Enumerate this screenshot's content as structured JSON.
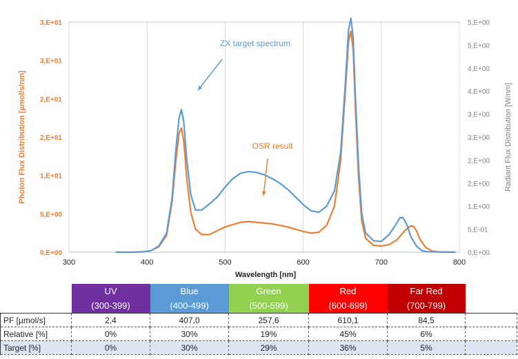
{
  "colors": {
    "left_axis": "#ed7d31",
    "right_axis": "#808080",
    "osr_line": "#ed7d31",
    "zx_line": "#5b9bd5",
    "target_row_bg": "#dde5f3"
  },
  "chart_data": {
    "type": "line",
    "xlabel": "Wavelength [nm]",
    "ylabel": "Photon Flux Distribution [µmol/s/nm]",
    "y2label": "Radiant Flux Distribution [W/nm]",
    "xlim": [
      300,
      800
    ],
    "ylim": [
      0,
      30
    ],
    "y2lim": [
      0,
      5
    ],
    "grid": "vertical",
    "x_ticks": [
      "300",
      "400",
      "500",
      "600",
      "700",
      "800"
    ],
    "y_ticks": [
      "0,E+00",
      "5,E+00",
      "1,E+01",
      "2,E+01",
      "2,E+01",
      "3,E+01",
      "3,E+01"
    ],
    "y2_ticks": [
      "0,E+00",
      "5,E-01",
      "1,E+00",
      "2,E+00",
      "2,E+00",
      "3,E+00",
      "3,E+00",
      "4,E+00",
      "4,E+00",
      "5,E+00",
      "5,E+00"
    ],
    "annotations": [
      {
        "text": "ZX target spectrum",
        "series": "ZX target spectrum"
      },
      {
        "text": "OSR result",
        "series": "OSR result"
      }
    ],
    "series": [
      {
        "name": "ZX target spectrum",
        "axis": "left",
        "points": [
          [
            360,
            0
          ],
          [
            380,
            0
          ],
          [
            395,
            0.05
          ],
          [
            405,
            0.2
          ],
          [
            415,
            0.8
          ],
          [
            425,
            2.5
          ],
          [
            432,
            7
          ],
          [
            437,
            13.5
          ],
          [
            441,
            17.5
          ],
          [
            444,
            18.6
          ],
          [
            447,
            17
          ],
          [
            451,
            12
          ],
          [
            456,
            7.5
          ],
          [
            462,
            5.5
          ],
          [
            470,
            5.5
          ],
          [
            480,
            6.3
          ],
          [
            490,
            7.2
          ],
          [
            500,
            8.5
          ],
          [
            510,
            9.6
          ],
          [
            520,
            10.3
          ],
          [
            530,
            10.5
          ],
          [
            540,
            10.4
          ],
          [
            550,
            10.1
          ],
          [
            560,
            9.6
          ],
          [
            570,
            9
          ],
          [
            580,
            8.2
          ],
          [
            590,
            7.2
          ],
          [
            600,
            6.2
          ],
          [
            610,
            5.4
          ],
          [
            620,
            5.2
          ],
          [
            630,
            6
          ],
          [
            640,
            8
          ],
          [
            648,
            13
          ],
          [
            654,
            22
          ],
          [
            658,
            29
          ],
          [
            661,
            30.5
          ],
          [
            664,
            28
          ],
          [
            667,
            20
          ],
          [
            671,
            11
          ],
          [
            675,
            5
          ],
          [
            680,
            2.5
          ],
          [
            690,
            1.5
          ],
          [
            700,
            1.4
          ],
          [
            710,
            2.3
          ],
          [
            718,
            3.5
          ],
          [
            724,
            4.5
          ],
          [
            728,
            4.5
          ],
          [
            733,
            3.5
          ],
          [
            738,
            2
          ],
          [
            745,
            0.8
          ],
          [
            752,
            0.2
          ],
          [
            760,
            0.05
          ],
          [
            795,
            0
          ]
        ]
      },
      {
        "name": "OSR result",
        "axis": "left",
        "points": [
          [
            360,
            0
          ],
          [
            380,
            0
          ],
          [
            395,
            0.05
          ],
          [
            405,
            0.2
          ],
          [
            415,
            0.7
          ],
          [
            425,
            2.2
          ],
          [
            432,
            6.5
          ],
          [
            437,
            12
          ],
          [
            441,
            15.5
          ],
          [
            444,
            16.2
          ],
          [
            447,
            14.5
          ],
          [
            451,
            9.5
          ],
          [
            456,
            5.2
          ],
          [
            462,
            3
          ],
          [
            470,
            2.3
          ],
          [
            480,
            2.3
          ],
          [
            490,
            2.8
          ],
          [
            500,
            3.3
          ],
          [
            510,
            3.6
          ],
          [
            520,
            3.9
          ],
          [
            530,
            4
          ],
          [
            540,
            3.9
          ],
          [
            550,
            3.8
          ],
          [
            560,
            3.7
          ],
          [
            570,
            3.5
          ],
          [
            580,
            3.3
          ],
          [
            590,
            3
          ],
          [
            600,
            2.7
          ],
          [
            610,
            2.5
          ],
          [
            620,
            2.6
          ],
          [
            630,
            3.5
          ],
          [
            640,
            6
          ],
          [
            648,
            12
          ],
          [
            654,
            21
          ],
          [
            658,
            27.5
          ],
          [
            661,
            28.8
          ],
          [
            664,
            26.5
          ],
          [
            667,
            18.5
          ],
          [
            671,
            9.5
          ],
          [
            675,
            4
          ],
          [
            680,
            1.8
          ],
          [
            690,
            0.9
          ],
          [
            700,
            0.8
          ],
          [
            710,
            1
          ],
          [
            720,
            1.6
          ],
          [
            730,
            2.8
          ],
          [
            737,
            3.4
          ],
          [
            741,
            3.4
          ],
          [
            745,
            2.8
          ],
          [
            750,
            1.6
          ],
          [
            757,
            0.6
          ],
          [
            765,
            0.15
          ],
          [
            775,
            0.03
          ],
          [
            795,
            0
          ]
        ]
      }
    ]
  },
  "table": {
    "bands": [
      {
        "name": "UV",
        "range": "(300-399)",
        "color": "#7030a0"
      },
      {
        "name": "Blue",
        "range": "(400-499)",
        "color": "#5b9bd5"
      },
      {
        "name": "Green",
        "range": "(500-599)",
        "color": "#92d050"
      },
      {
        "name": "Red",
        "range": "(600-699)",
        "color": "#ff0000"
      },
      {
        "name": "Far Red",
        "range": "(700-799)",
        "color": "#c00000"
      }
    ],
    "rows": [
      {
        "label": "PF [µmol/s]",
        "values": [
          "2,4",
          "407,0",
          "257,6",
          "610,1",
          "84,5"
        ]
      },
      {
        "label": "Relative [%]",
        "values": [
          "0%",
          "30%",
          "19%",
          "45%",
          "6%"
        ]
      },
      {
        "label": "Target [%]",
        "values": [
          "0%",
          "30%",
          "29%",
          "36%",
          "5%"
        ]
      }
    ]
  }
}
